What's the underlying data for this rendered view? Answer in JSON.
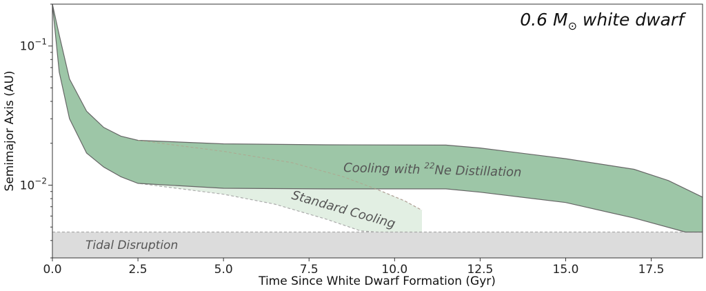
{
  "chart_data": {
    "type": "area",
    "title": "0.6 M⊙ white dwarf",
    "title_parts": {
      "prefix": "0.6 M",
      "subscript": "⊙",
      "suffix": " white dwarf"
    },
    "xlabel": "Time Since White Dwarf Formation (Gyr)",
    "ylabel": "Semimajor Axis (AU)",
    "xlim": [
      0,
      19
    ],
    "ylim": [
      0.003,
      0.2
    ],
    "yscale": "log",
    "x_ticks": [
      0.0,
      2.5,
      5.0,
      7.5,
      10.0,
      12.5,
      15.0,
      17.5
    ],
    "x_tick_labels": [
      "0.0",
      "2.5",
      "5.0",
      "7.5",
      "10.0",
      "12.5",
      "15.0",
      "17.5"
    ],
    "y_ticks": [
      {
        "value": 0.1,
        "base": "10",
        "exp": "−1"
      },
      {
        "value": 0.01,
        "base": "10",
        "exp": "−2"
      }
    ],
    "series": [
      {
        "name": "Cooling with 22Ne Distillation",
        "color": "#9dc6a7",
        "upper": {
          "x": [
            0.0,
            0.2,
            0.5,
            1.0,
            1.5,
            2.0,
            2.5,
            5.0,
            8.0,
            11.5,
            12.5,
            15.0,
            17.0,
            18.0,
            19.0
          ],
          "y": [
            0.2,
            0.12,
            0.058,
            0.034,
            0.026,
            0.0225,
            0.021,
            0.0198,
            0.0195,
            0.0194,
            0.0185,
            0.0155,
            0.013,
            0.0108,
            0.0082
          ]
        },
        "lower": {
          "x": [
            0.0,
            0.2,
            0.5,
            1.0,
            1.5,
            2.0,
            2.5,
            5.0,
            8.0,
            11.5,
            12.5,
            15.0,
            17.0,
            18.5,
            19.0
          ],
          "y": [
            0.2,
            0.065,
            0.03,
            0.017,
            0.0135,
            0.0115,
            0.0103,
            0.0095,
            0.0094,
            0.0094,
            0.0089,
            0.0075,
            0.0058,
            0.0046,
            0.0046
          ]
        }
      },
      {
        "name": "Standard Cooling",
        "color": "#e2efe3",
        "upper": {
          "x": [
            2.5,
            5.0,
            7.0,
            8.5,
            9.5,
            10.3,
            10.8
          ],
          "y": [
            0.021,
            0.0175,
            0.0145,
            0.0115,
            0.0093,
            0.0077,
            0.0066
          ]
        },
        "lower": {
          "x": [
            2.5,
            5.0,
            6.5,
            8.0,
            9.0,
            9.5,
            10.8
          ],
          "y": [
            0.0103,
            0.0086,
            0.0073,
            0.0057,
            0.0047,
            0.0046,
            0.0046
          ]
        }
      },
      {
        "name": "Tidal Disruption",
        "color": "#dcdcdc",
        "upper": {
          "x": [
            0,
            19
          ],
          "y": [
            0.0046,
            0.0046
          ]
        },
        "lower": {
          "x": [
            0,
            19
          ],
          "y": [
            0.003,
            0.003
          ]
        }
      }
    ],
    "annotations": {
      "distillation_prefix": "Cooling with ",
      "distillation_sup": "22",
      "distillation_suffix": "Ne Distillation",
      "standard": "Standard Cooling",
      "tidal": "Tidal Disruption"
    }
  }
}
